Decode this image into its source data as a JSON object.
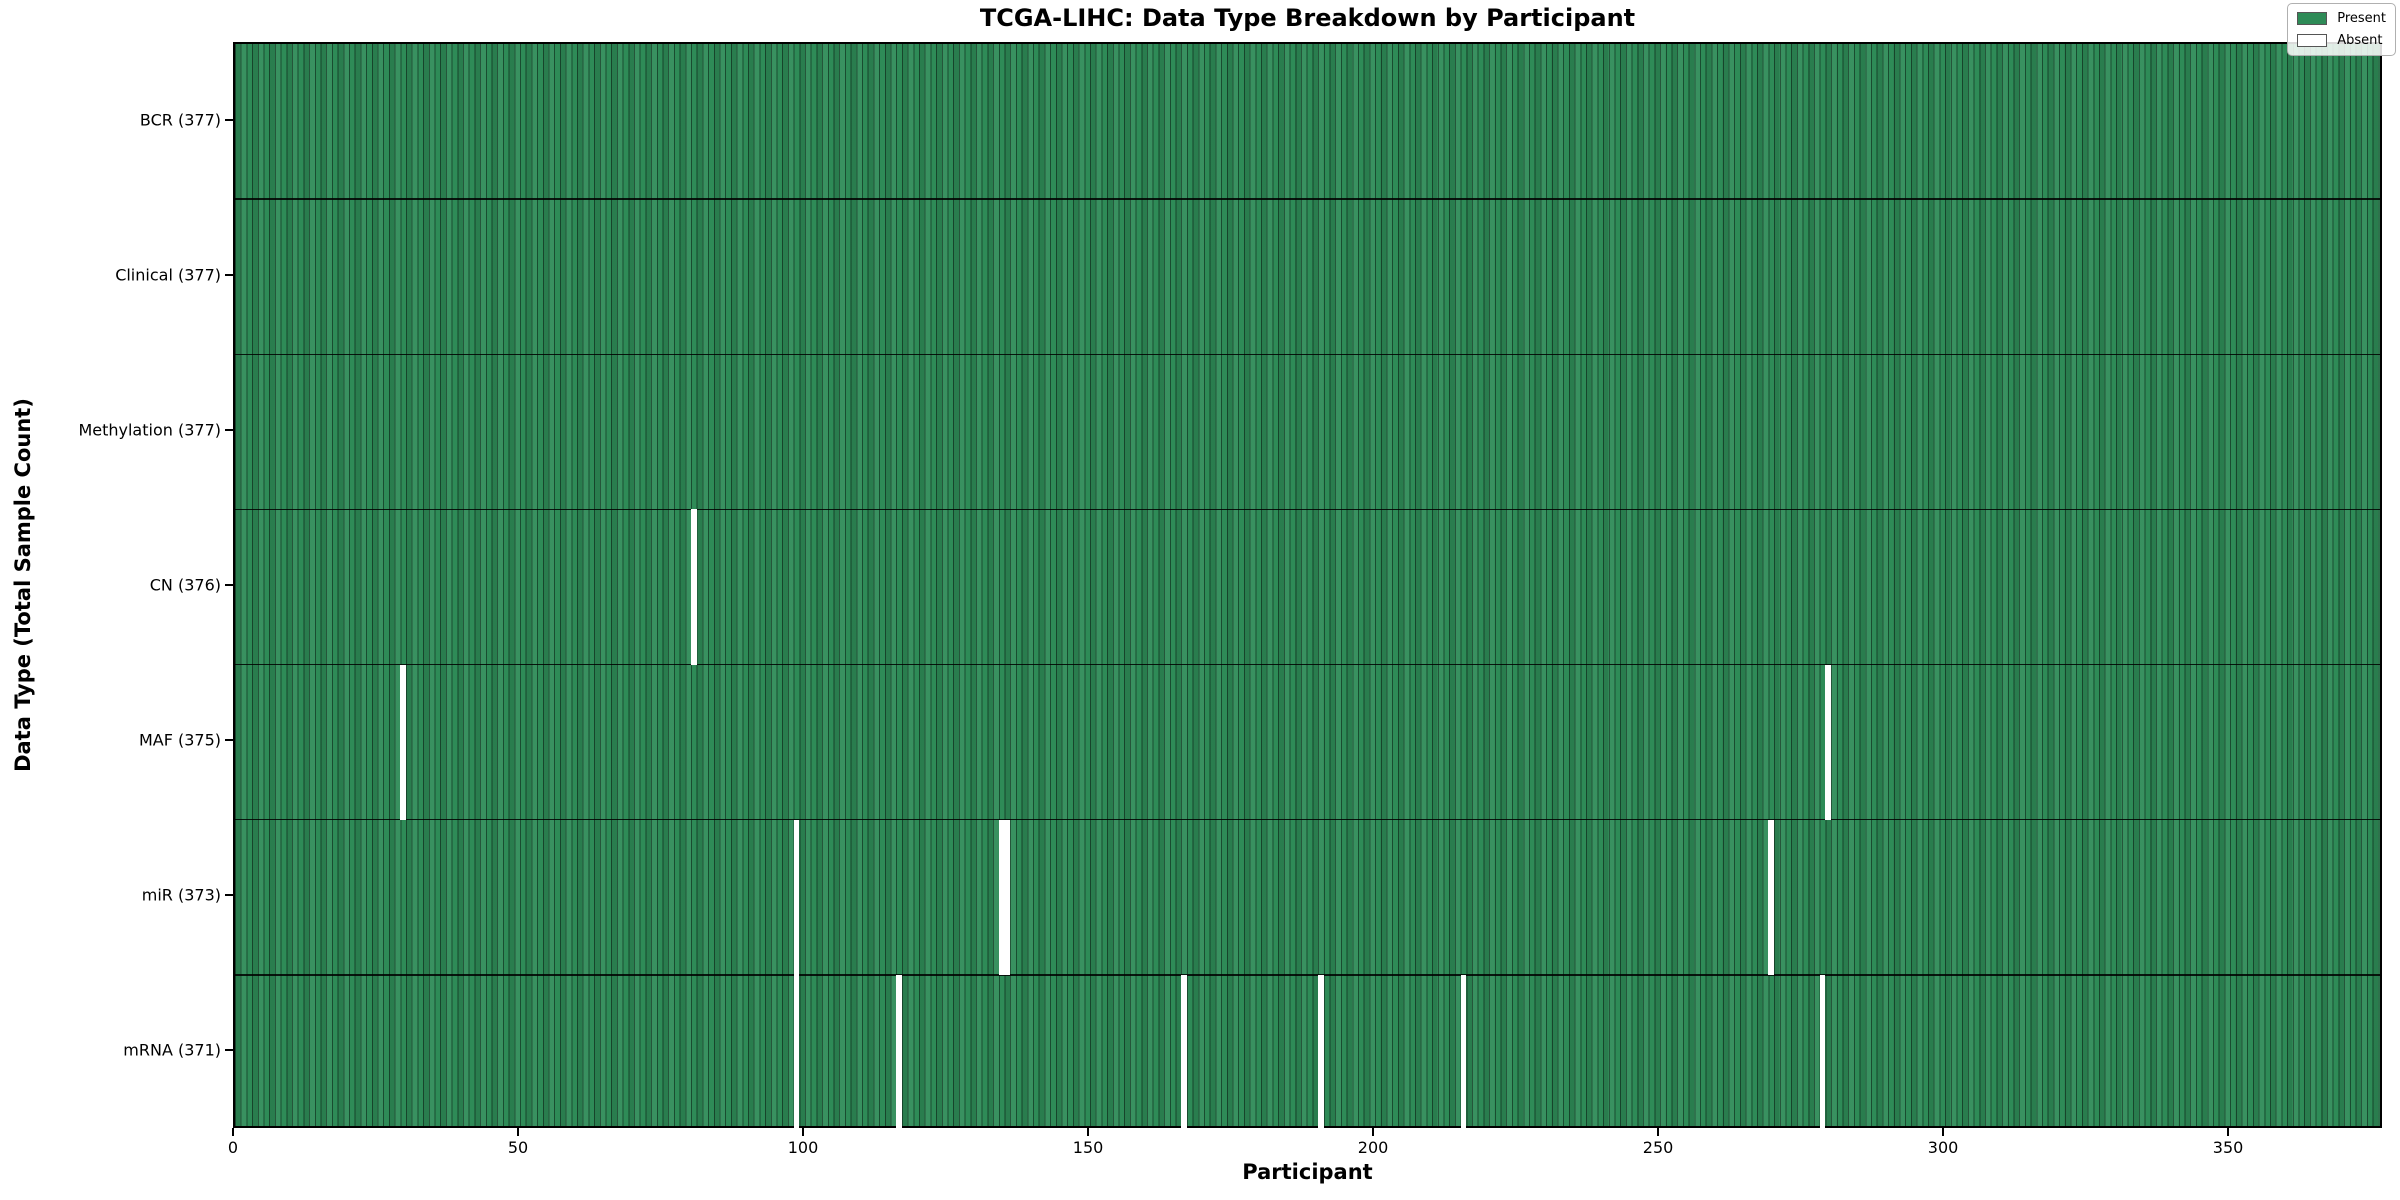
{
  "figure": {
    "title": "TCGA-LIHC: Data Type Breakdown by Participant",
    "xlabel": "Participant",
    "ylabel": "Data Type (Total Sample Count)"
  },
  "legend": {
    "items": [
      {
        "label": "Present",
        "color": "#2e8b57"
      },
      {
        "label": "Absent",
        "color": "#ffffff"
      }
    ]
  },
  "chart_data": {
    "type": "heatmap",
    "title": "TCGA-LIHC: Data Type Breakdown by Participant",
    "xlabel": "Participant",
    "ylabel": "Data Type (Total Sample Count)",
    "legend_position": "upper right",
    "grid": "per-participant vertical cell edges, horizontal row separators",
    "n_participants": 377,
    "x_axis": {
      "ticks": [
        0,
        50,
        100,
        150,
        200,
        250,
        300,
        350
      ],
      "range": [
        0,
        377
      ]
    },
    "present_color": "#2e8b57",
    "absent_color": "#ffffff",
    "rows": [
      {
        "label": "BCR (377)",
        "data_type": "BCR",
        "total": 377,
        "absent_participants": []
      },
      {
        "label": "Clinical (377)",
        "data_type": "Clinical",
        "total": 377,
        "absent_participants": []
      },
      {
        "label": "Methylation (377)",
        "data_type": "Methylation",
        "total": 377,
        "absent_participants": []
      },
      {
        "label": "CN (376)",
        "data_type": "CN",
        "total": 376,
        "absent_participants": [
          80
        ]
      },
      {
        "label": "MAF (375)",
        "data_type": "MAF",
        "total": 375,
        "absent_participants": [
          29,
          279
        ]
      },
      {
        "label": "miR (373)",
        "data_type": "miR",
        "total": 373,
        "absent_participants": [
          98,
          134,
          135,
          269
        ]
      },
      {
        "label": "mRNA (371)",
        "data_type": "mRNA",
        "total": 371,
        "absent_participants": [
          98,
          116,
          166,
          190,
          215,
          278
        ]
      }
    ]
  }
}
